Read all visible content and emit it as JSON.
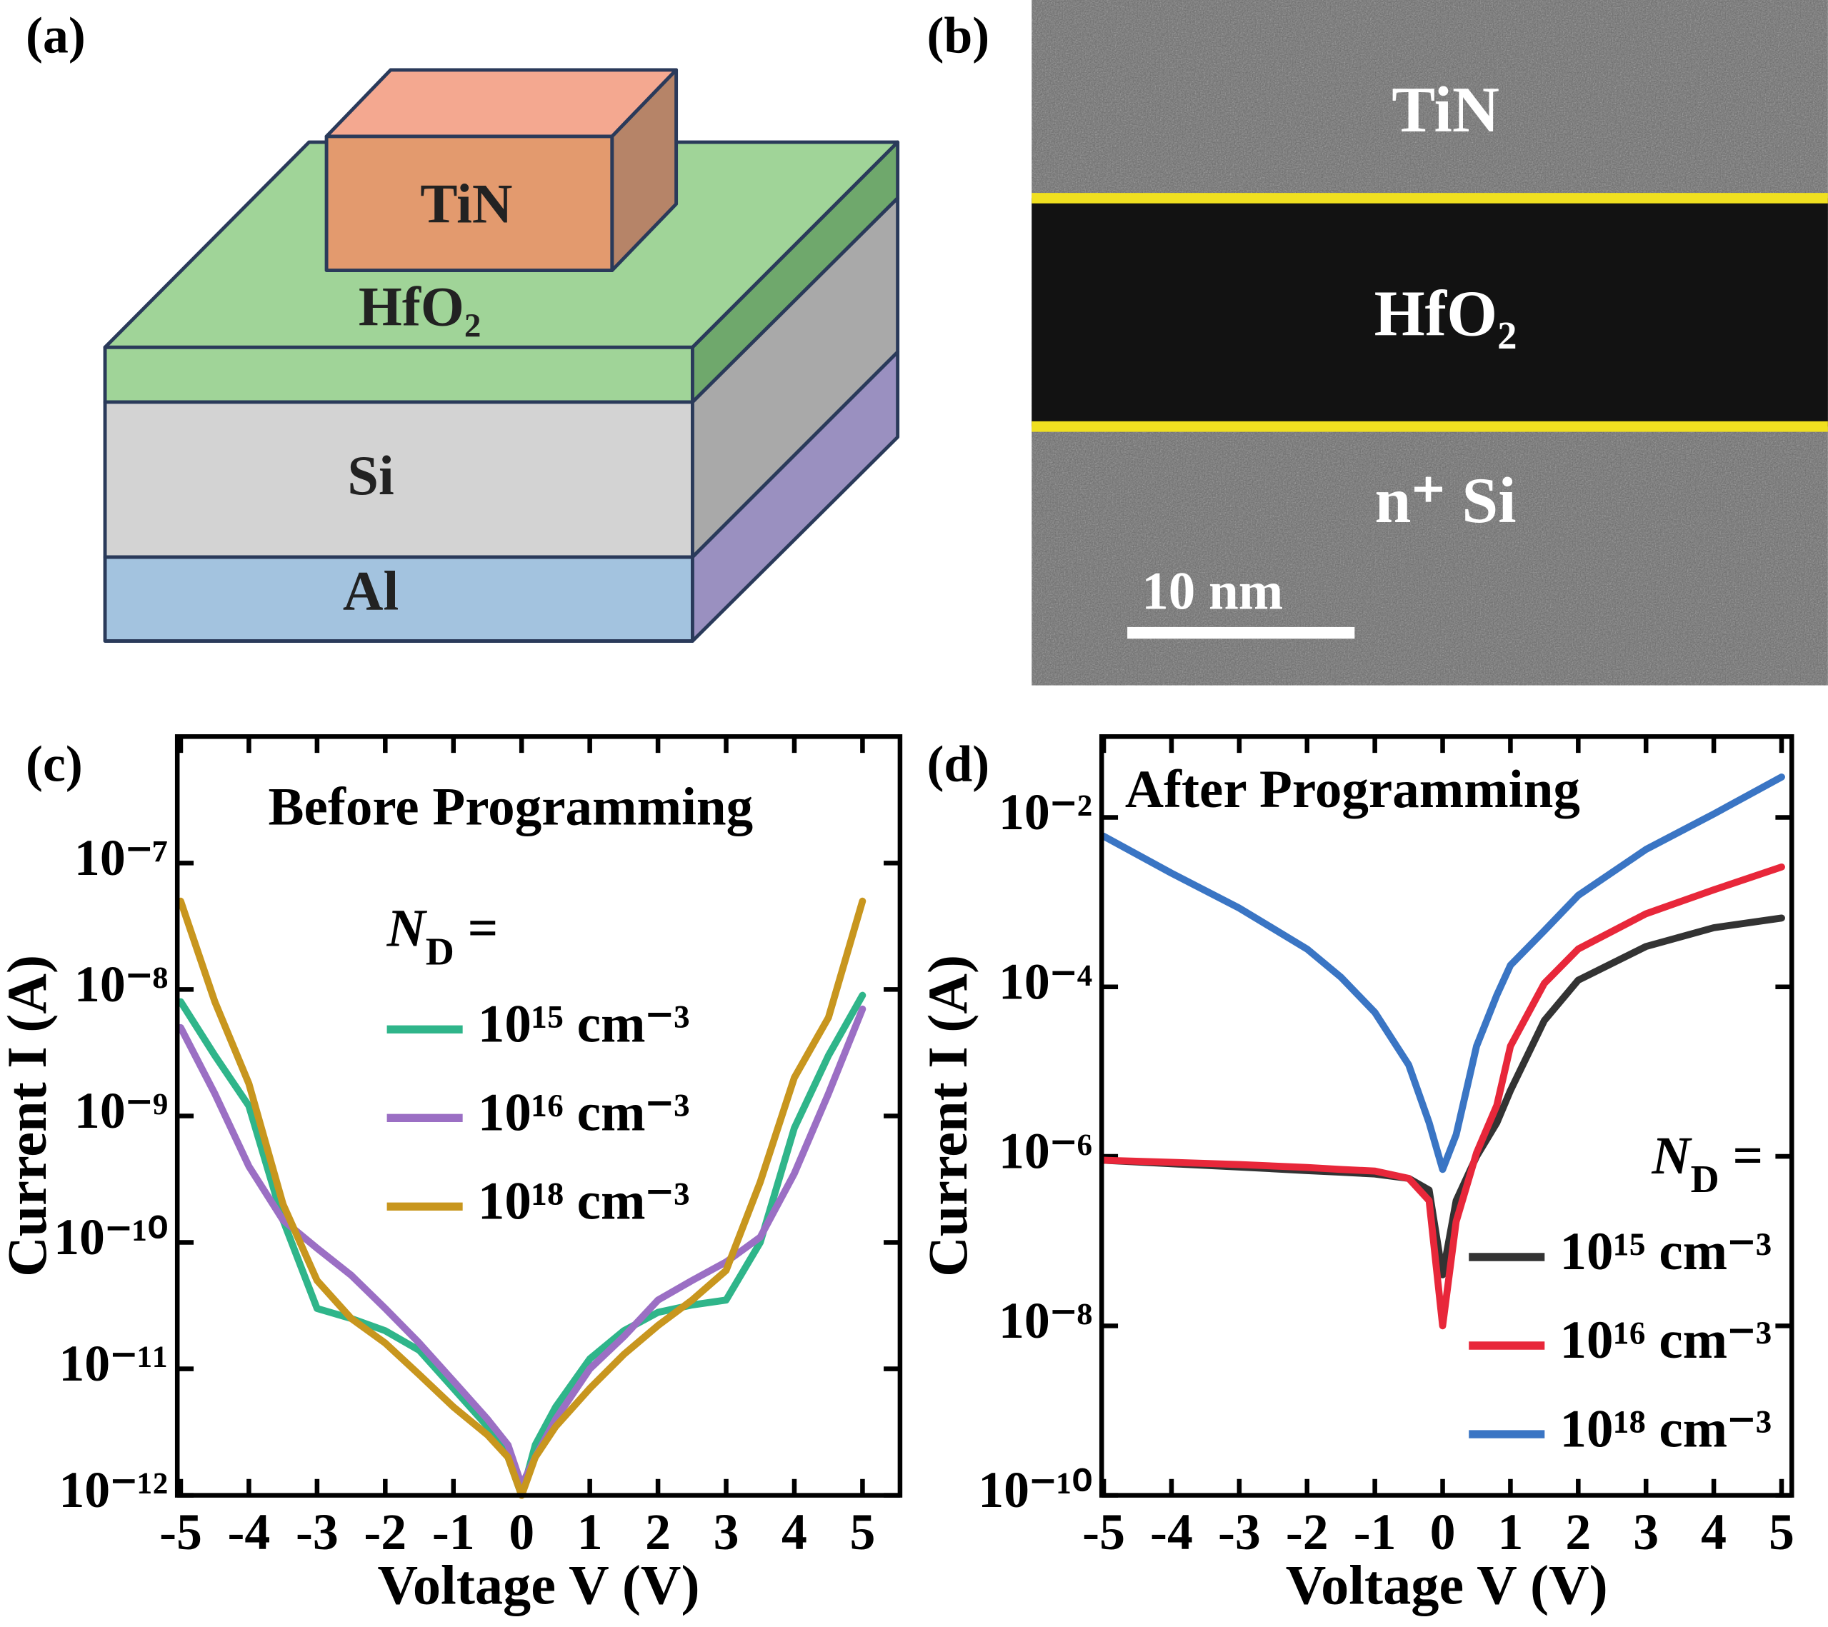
{
  "panels": {
    "a": {
      "label": "(a)",
      "layers": {
        "top": "TiN",
        "oxide": "HfO₂",
        "substrate": "Si",
        "contact": "Al"
      }
    },
    "b": {
      "label": "(b)",
      "layers": {
        "top": "TiN",
        "oxide": "HfO₂",
        "substrate": "n⁺ Si"
      },
      "scale_bar": "10 nm"
    }
  },
  "chart_data": [
    {
      "type": "line",
      "panel_label": "(c)",
      "title": "Before Programming",
      "xlabel": "Voltage V (V)",
      "ylabel": "Current I (A)",
      "yscale": "log",
      "xlim": [
        -5.05,
        5.55
      ],
      "ylim": [
        1e-12,
        1e-06
      ],
      "xticks": [
        -5,
        -4,
        -3,
        -2,
        -1,
        0,
        1,
        2,
        3,
        4,
        5
      ],
      "yticks": [
        {
          "value": 1e-12,
          "label": "10⁻¹²"
        },
        {
          "value": 1e-11,
          "label": "10⁻¹¹"
        },
        {
          "value": 1e-10,
          "label": "10⁻¹⁰"
        },
        {
          "value": 1e-09,
          "label": "10⁻⁹"
        },
        {
          "value": 1e-08,
          "label": "10⁻⁸"
        },
        {
          "value": 1e-07,
          "label": "10⁻⁷"
        }
      ],
      "legend_title": "ND =",
      "legend_position": "center",
      "x": [
        -5,
        -4.5,
        -4,
        -3.5,
        -3,
        -2.5,
        -2,
        -1.5,
        -1,
        -0.5,
        -0.2,
        0,
        0.2,
        0.5,
        1,
        1.5,
        2,
        2.5,
        3,
        3.5,
        4,
        4.5,
        5
      ],
      "series": [
        {
          "name": "10¹⁵ cm⁻³",
          "color": "#2fb58a",
          "values": [
            8e-09,
            3e-09,
            1.2e-09,
            1.5e-10,
            3e-11,
            2.5e-11,
            2e-11,
            1.4e-11,
            7e-12,
            3.5e-12,
            2e-12,
            1e-12,
            2.5e-12,
            5e-12,
            1.2e-11,
            2e-11,
            2.8e-11,
            3.2e-11,
            3.5e-11,
            1e-10,
            8e-10,
            3e-09,
            9e-09
          ]
        },
        {
          "name": "10¹⁶ cm⁻³",
          "color": "#9b6fc4",
          "values": [
            5e-09,
            1.5e-09,
            4e-10,
            1.5e-10,
            9e-11,
            5.5e-11,
            3e-11,
            1.6e-11,
            8e-12,
            4e-12,
            2.5e-12,
            1.2e-12,
            2e-12,
            4e-12,
            1e-11,
            1.8e-11,
            3.5e-11,
            5e-11,
            7e-11,
            1.1e-10,
            3.5e-10,
            1.5e-09,
            7e-09
          ]
        },
        {
          "name": "10¹⁸ cm⁻³",
          "color": "#c8961e",
          "values": [
            5e-08,
            8e-09,
            1.8e-09,
            2e-10,
            5e-11,
            2.5e-11,
            1.6e-11,
            9e-12,
            5e-12,
            3e-12,
            2e-12,
            1e-12,
            2e-12,
            3.5e-12,
            7e-12,
            1.3e-11,
            2.2e-11,
            3.5e-11,
            6e-11,
            3e-10,
            2e-09,
            6e-09,
            5e-08
          ]
        }
      ]
    },
    {
      "type": "line",
      "panel_label": "(d)",
      "title": "After Programming",
      "xlabel": "Voltage V (V)",
      "ylabel": "Current I (A)",
      "yscale": "log",
      "xlim": [
        -5.03,
        5.15
      ],
      "ylim": [
        1e-10,
        0.09
      ],
      "xticks": [
        -5,
        -4,
        -3,
        -2,
        -1,
        0,
        1,
        2,
        3,
        4,
        5
      ],
      "yticks": [
        {
          "value": 1e-10,
          "label": "10⁻¹⁰"
        },
        {
          "value": 1e-08,
          "label": "10⁻⁸"
        },
        {
          "value": 1e-06,
          "label": "10⁻⁶"
        },
        {
          "value": 0.0001,
          "label": "10⁻⁴"
        },
        {
          "value": 0.01,
          "label": "10⁻²"
        }
      ],
      "legend_title": "ND =",
      "legend_position": "lower right",
      "x": [
        -5,
        -4,
        -3,
        -2,
        -1.5,
        -1,
        -0.5,
        -0.2,
        0,
        0.2,
        0.5,
        0.8,
        1,
        1.5,
        2,
        3,
        4,
        5
      ],
      "series": [
        {
          "name": "10¹⁵ cm⁻³",
          "color": "#333333",
          "values": [
            9e-07,
            8.2e-07,
            7.5e-07,
            6.8e-07,
            6.5e-07,
            6.2e-07,
            5.5e-07,
            4e-07,
            4e-08,
            3e-07,
            1e-06,
            2.5e-06,
            6e-06,
            4e-05,
            0.00012,
            0.0003,
            0.0005,
            0.00065
          ]
        },
        {
          "name": "10¹⁶ cm⁻³",
          "color": "#e8273a",
          "values": [
            9e-07,
            8.5e-07,
            8e-07,
            7.4e-07,
            7e-07,
            6.7e-07,
            5.5e-07,
            3e-07,
            1e-08,
            1.7e-07,
            1.1e-06,
            4e-06,
            2e-05,
            0.00011,
            0.00028,
            0.00073,
            0.0014,
            0.0026
          ]
        },
        {
          "name": "10¹⁸ cm⁻³",
          "color": "#3a75c4",
          "values": [
            0.006,
            0.0022,
            0.00085,
            0.00028,
            0.00013,
            5e-05,
            1.2e-05,
            2.5e-06,
            7e-07,
            1.8e-06,
            2e-05,
            8e-05,
            0.00018,
            0.00046,
            0.0012,
            0.0042,
            0.011,
            0.03
          ]
        }
      ]
    }
  ]
}
